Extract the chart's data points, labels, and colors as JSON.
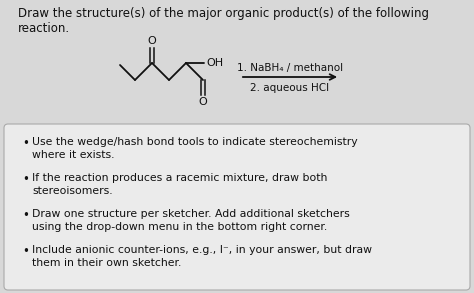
{
  "title_text": "Draw the structure(s) of the major organic product(s) of the following\nreaction.",
  "reagent_line1": "1. NaBH₄ / methanol",
  "reagent_line2": "2. aqueous HCl",
  "bullet_points": [
    "Use the wedge/hash bond tools to indicate stereochemistry\nwhere it exists.",
    "If the reaction produces a racemic mixture, draw both\nstereoisomers.",
    "Draw one structure per sketcher. Add additional sketchers\nusing the drop-down menu in the bottom right corner.",
    "Include anionic counter-ions, e.g., I⁻, in your answer, but draw\nthem in their own sketcher."
  ],
  "background_color": "#d8d8d8",
  "box_background": "#ebebeb",
  "text_color": "#111111",
  "title_fontsize": 8.5,
  "body_fontsize": 7.8,
  "arrow_color": "#111111",
  "struct_color": "#111111"
}
